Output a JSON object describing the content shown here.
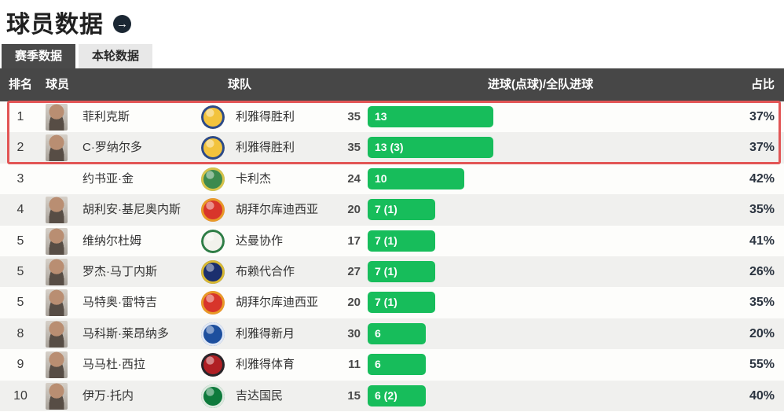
{
  "page": {
    "title": "球员数据",
    "title_arrow_glyph": "→"
  },
  "tabs": [
    {
      "label": "赛季数据",
      "active": true
    },
    {
      "label": "本轮数据",
      "active": false
    }
  ],
  "table": {
    "columns": {
      "rank": "排名",
      "player": "球员",
      "team": "球队",
      "goals": "进球(点球)/全队进球",
      "ratio": "占比"
    },
    "bar_max_goals": 35,
    "rows": [
      {
        "rank": "1",
        "player": "菲利克斯",
        "team": "利雅得胜利",
        "goals_label": "13",
        "player_goals": 13,
        "team_goals": 35,
        "ratio": "37%",
        "highlighted": true,
        "has_photo": true,
        "logo": {
          "bg": "#f2c33d",
          "ring": "#2b4a8b"
        }
      },
      {
        "rank": "2",
        "player": "C·罗纳尔多",
        "team": "利雅得胜利",
        "goals_label": "13 (3)",
        "player_goals": 13,
        "team_goals": 35,
        "ratio": "37%",
        "highlighted": true,
        "has_photo": true,
        "logo": {
          "bg": "#f2c33d",
          "ring": "#2b4a8b"
        }
      },
      {
        "rank": "3",
        "player": "约书亚·金",
        "team": "卡利杰",
        "goals_label": "10",
        "player_goals": 10,
        "team_goals": 24,
        "ratio": "42%",
        "highlighted": false,
        "has_photo": false,
        "logo": {
          "bg": "#3c8a4e",
          "ring": "#d8c34a"
        }
      },
      {
        "rank": "4",
        "player": "胡利安·基尼奥内斯",
        "team": "胡拜尔库迪西亚",
        "goals_label": "7 (1)",
        "player_goals": 7,
        "team_goals": 20,
        "ratio": "35%",
        "highlighted": false,
        "has_photo": true,
        "logo": {
          "bg": "#d8352b",
          "ring": "#e89b27"
        }
      },
      {
        "rank": "5",
        "player": "维纳尔杜姆",
        "team": "达曼协作",
        "goals_label": "7 (1)",
        "player_goals": 7,
        "team_goals": 17,
        "ratio": "41%",
        "highlighted": false,
        "has_photo": true,
        "logo": {
          "bg": "#f2f2ec",
          "ring": "#2e7d46"
        }
      },
      {
        "rank": "5",
        "player": "罗杰·马丁内斯",
        "team": "布赖代合作",
        "goals_label": "7 (1)",
        "player_goals": 7,
        "team_goals": 27,
        "ratio": "26%",
        "highlighted": false,
        "has_photo": true,
        "logo": {
          "bg": "#1b2f6e",
          "ring": "#d9b932"
        }
      },
      {
        "rank": "5",
        "player": "马特奥·雷特吉",
        "team": "胡拜尔库迪西亚",
        "goals_label": "7 (1)",
        "player_goals": 7,
        "team_goals": 20,
        "ratio": "35%",
        "highlighted": false,
        "has_photo": true,
        "logo": {
          "bg": "#d8352b",
          "ring": "#e89b27"
        }
      },
      {
        "rank": "8",
        "player": "马科斯·莱昂纳多",
        "team": "利雅得新月",
        "goals_label": "6",
        "player_goals": 6,
        "team_goals": 30,
        "ratio": "20%",
        "highlighted": false,
        "has_photo": true,
        "logo": {
          "bg": "#1d4f9e",
          "ring": "#dfe7f5"
        }
      },
      {
        "rank": "9",
        "player": "马马杜·西拉",
        "team": "利雅得体育",
        "goals_label": "6",
        "player_goals": 6,
        "team_goals": 11,
        "ratio": "55%",
        "highlighted": false,
        "has_photo": true,
        "logo": {
          "bg": "#b01f24",
          "ring": "#26262a"
        }
      },
      {
        "rank": "10",
        "player": "伊万·托内",
        "team": "吉达国民",
        "goals_label": "6 (2)",
        "player_goals": 6,
        "team_goals": 15,
        "ratio": "40%",
        "highlighted": false,
        "has_photo": true,
        "logo": {
          "bg": "#0e7a3c",
          "ring": "#dce9df"
        }
      }
    ]
  },
  "colors": {
    "bar_fill": "#17bd5b",
    "bar_track": "#dcf6e8",
    "highlight_border": "#e25555",
    "header_bg": "#474747",
    "row_alt_bg": "#f0f0ee",
    "title_icon_bg": "#1b2733"
  }
}
